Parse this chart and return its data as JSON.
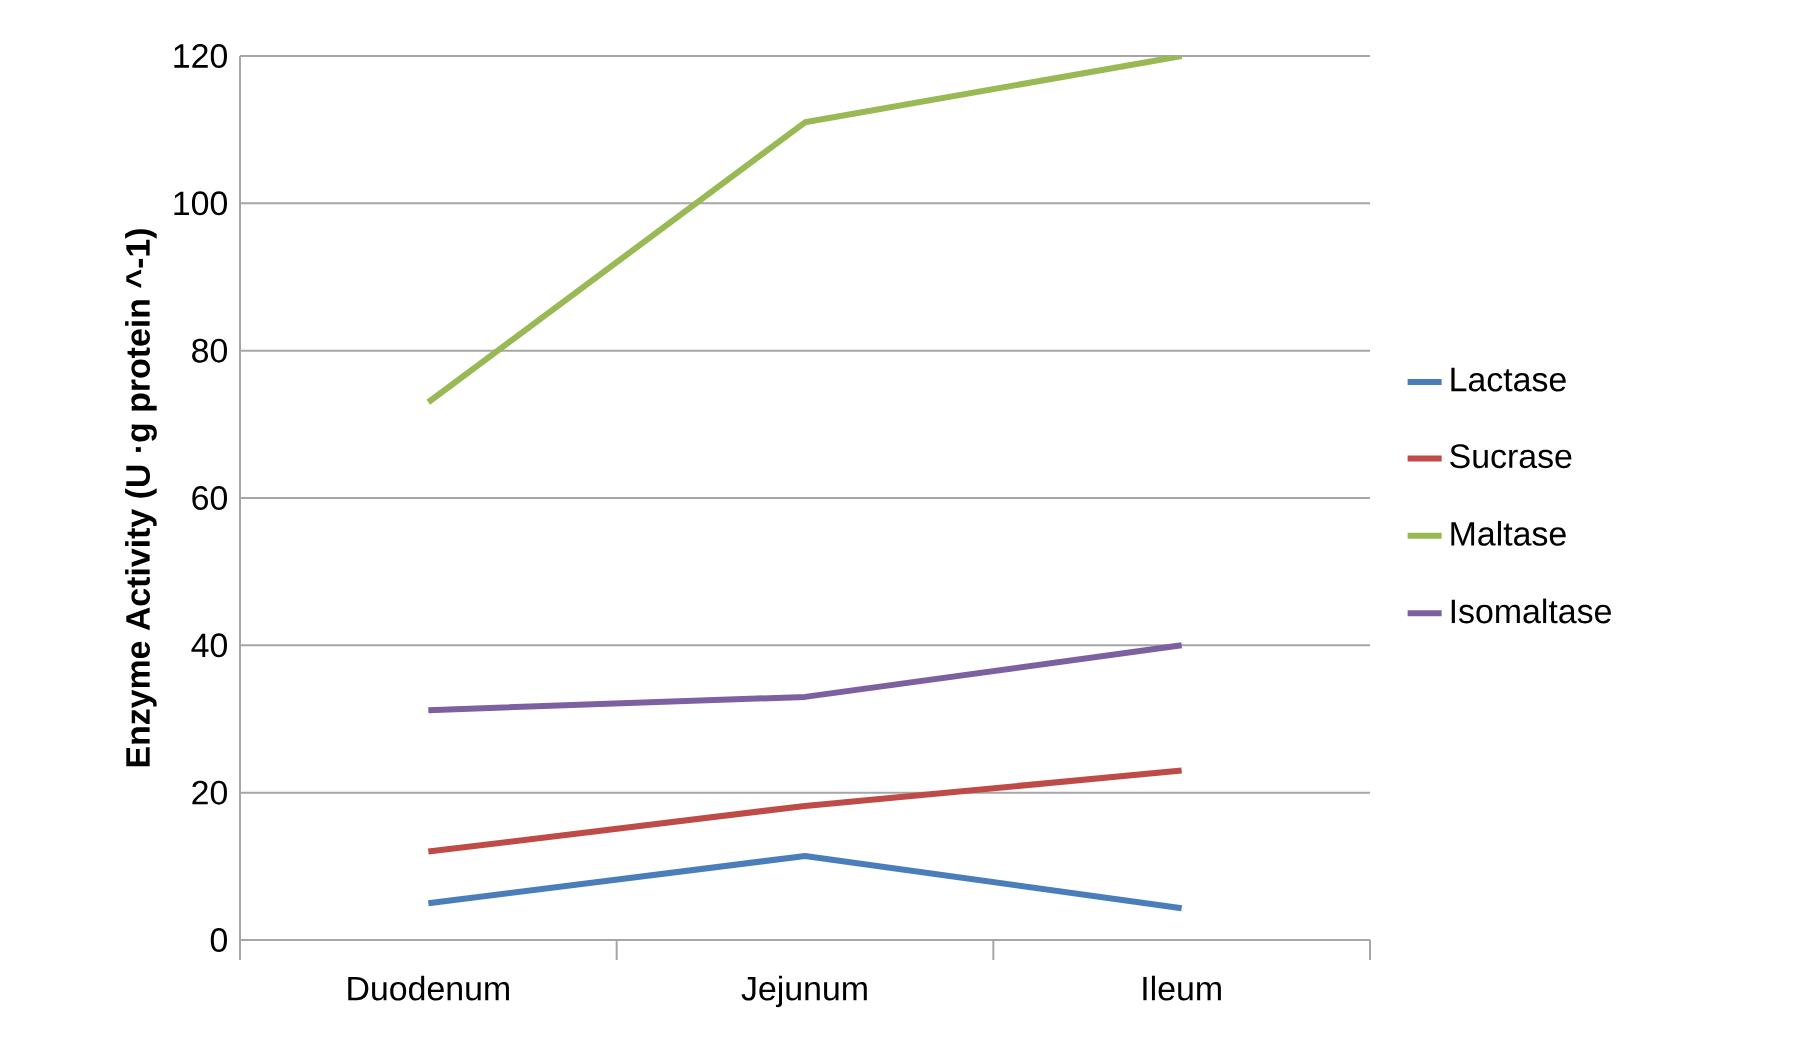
{
  "chart_data": {
    "type": "line",
    "ylabel": "Enzyme Activity (U ·g protein ^-1)",
    "categories": [
      "Duodenum",
      "Jejunum",
      "Ileum"
    ],
    "series": [
      {
        "name": "Lactase",
        "color": "#4a7ebb",
        "values": [
          5,
          11.4,
          4.3
        ]
      },
      {
        "name": "Sucrase",
        "color": "#be4b48",
        "values": [
          12,
          18.2,
          23
        ]
      },
      {
        "name": "Maltase",
        "color": "#98b954",
        "values": [
          73,
          111,
          120
        ]
      },
      {
        "name": "Isomaltase",
        "color": "#7d60a0",
        "values": [
          31.2,
          33,
          40
        ]
      }
    ],
    "ylim": [
      0,
      120
    ],
    "yticks": [
      0,
      20,
      40,
      60,
      80,
      100,
      120
    ],
    "grid": "y",
    "legend": "right",
    "marker": "none",
    "line_style": "solid"
  }
}
